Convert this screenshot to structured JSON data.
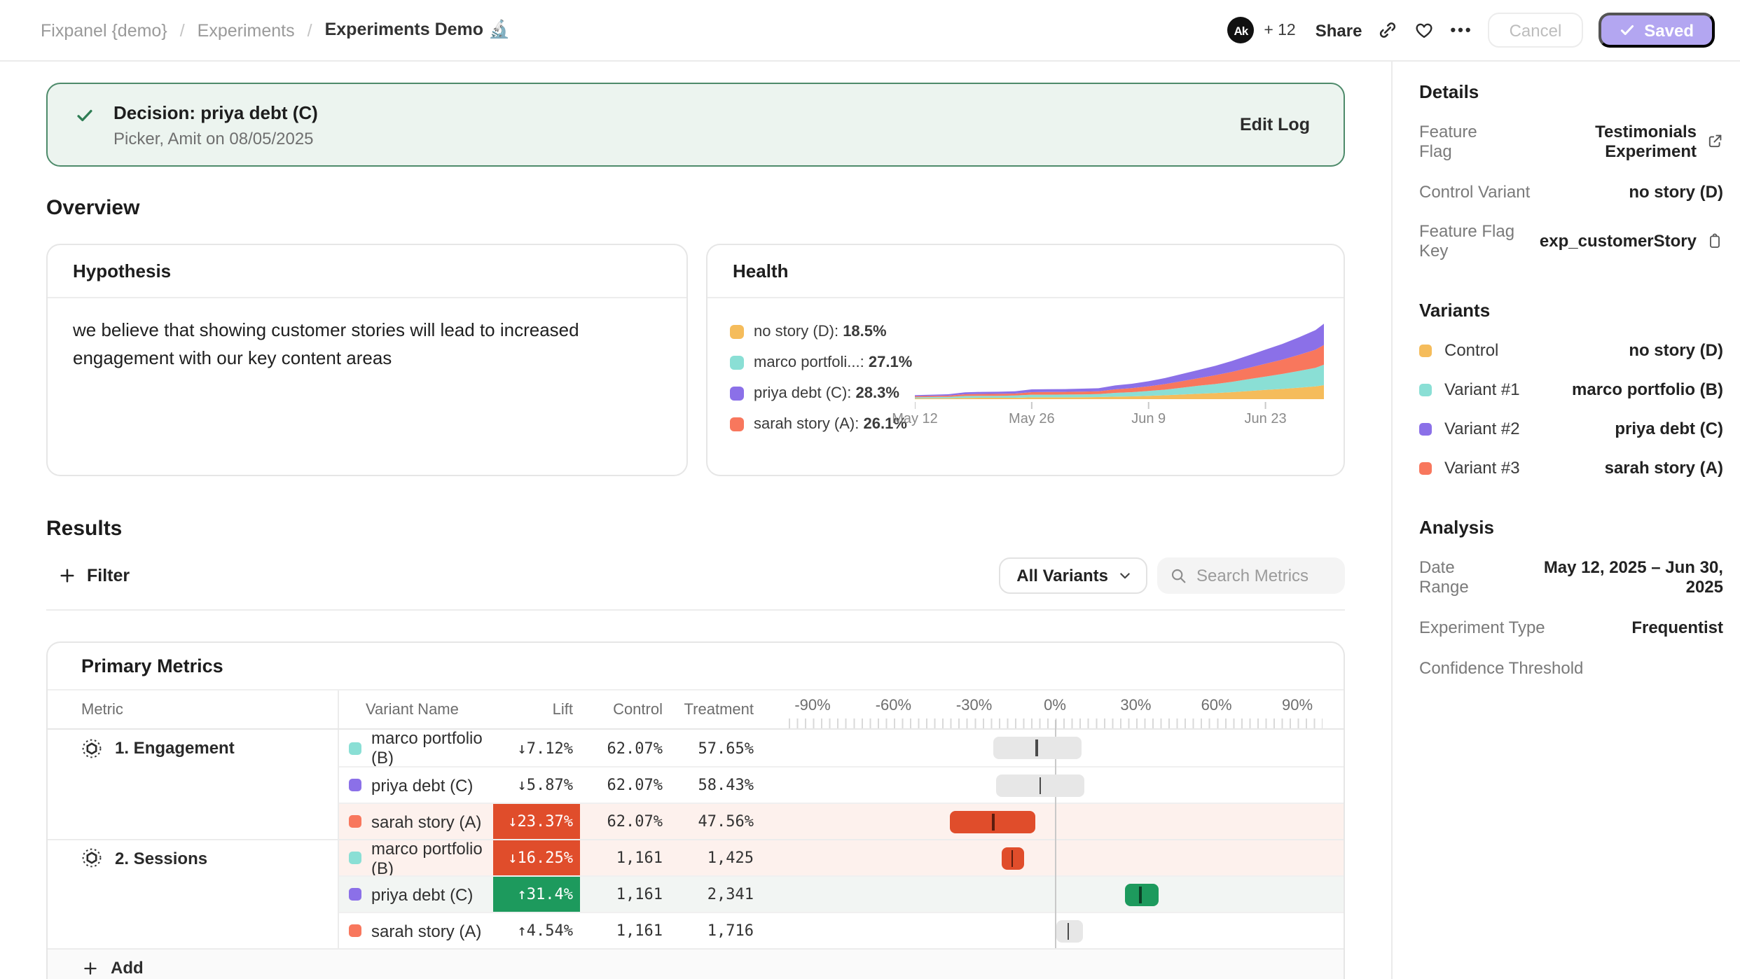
{
  "header": {
    "breadcrumb": [
      "Fixpanel {demo}",
      "Experiments",
      "Experiments Demo 🔬"
    ],
    "separator": "/",
    "avatar_label": "Ak",
    "collaborators": "+ 12",
    "share_label": "Share",
    "more_label": "•••",
    "cancel_label": "Cancel",
    "saved_label": "Saved",
    "saved_color": "#b3a6f1"
  },
  "decision": {
    "title": "Decision: priya debt (C)",
    "byline": "Picker, Amit on 08/05/2025",
    "edit_log_label": "Edit Log",
    "banner_bg": "#ecf4ef",
    "banner_border": "#4d8a6a"
  },
  "overview": {
    "title": "Overview",
    "hypothesis": {
      "title": "Hypothesis",
      "body": "we believe that showing customer stories will lead to increased engagement with our key content areas"
    },
    "health": {
      "title": "Health",
      "legend": [
        {
          "label": "no story (D)",
          "value": "18.5%",
          "color": "#f5bc5b"
        },
        {
          "label": "marco portfoli...",
          "value": "27.1%",
          "color": "#8adfd5"
        },
        {
          "label": "priya debt (C)",
          "value": "28.3%",
          "color": "#8b70e8"
        },
        {
          "label": "sarah story (A)",
          "value": "26.1%",
          "color": "#f8775d"
        }
      ]
    }
  },
  "results": {
    "title": "Results",
    "filter_label": "Filter",
    "variant_filter_label": "All Variants",
    "search_placeholder": "Search Metrics"
  },
  "primary_metrics": {
    "title": "Primary Metrics",
    "add_label": "Add",
    "columns": {
      "metric": "Metric",
      "variant": "Variant Name",
      "lift": "Lift",
      "control": "Control",
      "treatment": "Treatment"
    },
    "axis_labels": [
      "-90%",
      "-60%",
      "-30%",
      "0%",
      "30%",
      "60%",
      "90%"
    ],
    "rows": [
      {
        "group": "1. Engagement",
        "variant": "marco portfolio (B)",
        "color": "#8adfd5",
        "lift": "↓7.12%",
        "lift_type": "plain",
        "control": "62.07%",
        "treatment": "57.65%",
        "bg": "white",
        "ci": [
          -23,
          10
        ],
        "marker": -7.12
      },
      {
        "group": "",
        "variant": "priya debt (C)",
        "color": "#8b70e8",
        "lift": "↓5.87%",
        "lift_type": "plain",
        "control": "62.07%",
        "treatment": "58.43%",
        "bg": "white",
        "ci": [
          -22,
          11
        ],
        "marker": -5.87
      },
      {
        "group": "",
        "variant": "sarah story (A)",
        "color": "#f8775d",
        "lift": "↓23.37%",
        "lift_type": "negative",
        "control": "62.07%",
        "treatment": "47.56%",
        "bg": "pink",
        "ci": [
          -39,
          -7.5
        ],
        "marker": -23.37
      },
      {
        "group": "2. Sessions",
        "variant": "marco portfolio (B)",
        "color": "#8adfd5",
        "lift": "↓16.25%",
        "lift_type": "negative",
        "control": "1,161",
        "treatment": "1,425",
        "bg": "pink",
        "ci": [
          -20,
          -11.5
        ],
        "marker": -16.25
      },
      {
        "group": "",
        "variant": "priya debt (C)",
        "color": "#8b70e8",
        "lift": "↑31.4%",
        "lift_type": "positive",
        "control": "1,161",
        "treatment": "2,341",
        "bg": "mint",
        "ci": [
          26,
          38.5
        ],
        "marker": 31.4
      },
      {
        "group": "",
        "variant": "sarah story (A)",
        "color": "#f8775d",
        "lift": "↑4.54%",
        "lift_type": "plain",
        "control": "1,161",
        "treatment": "1,716",
        "bg": "white",
        "ci": [
          0.5,
          10.5
        ],
        "marker": 4.54
      }
    ]
  },
  "sidebar": {
    "details": {
      "title": "Details",
      "rows": [
        {
          "label": "Feature Flag",
          "value": "Testimonials Experiment",
          "icon": "external-link"
        },
        {
          "label": "Control Variant",
          "value": "no story (D)"
        },
        {
          "label": "Feature Flag Key",
          "value": "exp_customerStory",
          "icon": "copy"
        }
      ]
    },
    "variants": {
      "title": "Variants",
      "items": [
        {
          "label": "Control",
          "value": "no story (D)",
          "color": "#f5bc5b"
        },
        {
          "label": "Variant #1",
          "value": "marco portfolio (B)",
          "color": "#8adfd5"
        },
        {
          "label": "Variant #2",
          "value": "priya debt (C)",
          "color": "#8b70e8"
        },
        {
          "label": "Variant #3",
          "value": "sarah story (A)",
          "color": "#f8775d"
        }
      ]
    },
    "analysis": {
      "title": "Analysis",
      "rows": [
        {
          "label": "Date Range",
          "value": "May 12, 2025 – Jun 30, 2025"
        },
        {
          "label": "Experiment Type",
          "value": "Frequentist"
        },
        {
          "label": "Confidence Threshold",
          "value": ""
        }
      ]
    }
  },
  "chart_data": [
    {
      "type": "area",
      "stacked": true,
      "title": "Health — variant exposures over time",
      "legend_position": "left",
      "x_tick_labels": [
        "May 12",
        "May 26",
        "Jun 9",
        "Jun 23"
      ],
      "x_tick_days": [
        0,
        14,
        28,
        42
      ],
      "x_max_day": 49,
      "ylim": [
        0,
        100
      ],
      "days": [
        0,
        2,
        4,
        6,
        8,
        10,
        12,
        14,
        16,
        18,
        20,
        22,
        24,
        26,
        28,
        30,
        32,
        34,
        36,
        38,
        40,
        42,
        44,
        46,
        48,
        49
      ],
      "series": [
        {
          "name": "no story (D)",
          "color": "#f5bc5b",
          "share": "18.5%",
          "values": [
            0.9,
            1.0,
            1.1,
            1.6,
            1.7,
            1.7,
            1.8,
            2.2,
            2.3,
            2.3,
            2.4,
            2.5,
            3.1,
            3.5,
            4.1,
            4.8,
            5.7,
            6.7,
            7.6,
            8.7,
            10.0,
            11.3,
            12.6,
            14.1,
            15.7,
            17.2
          ]
        },
        {
          "name": "marco portfolio (B)",
          "color": "#8adfd5",
          "share": "27.1%",
          "values": [
            1.4,
            1.5,
            1.6,
            2.3,
            2.4,
            2.5,
            2.6,
            3.3,
            3.3,
            3.4,
            3.5,
            3.7,
            4.6,
            5.1,
            6.0,
            7.0,
            8.4,
            9.8,
            11.1,
            12.7,
            14.6,
            16.5,
            18.4,
            20.6,
            23.0,
            25.2
          ]
        },
        {
          "name": "sarah story (A)",
          "color": "#f8775d",
          "share": "26.1%",
          "values": [
            1.3,
            1.4,
            1.6,
            2.2,
            2.3,
            2.4,
            2.5,
            3.1,
            3.2,
            3.3,
            3.4,
            3.5,
            4.4,
            5.0,
            5.7,
            6.8,
            8.1,
            9.4,
            10.7,
            12.3,
            14.1,
            15.9,
            17.7,
            19.8,
            22.2,
            24.3
          ]
        },
        {
          "name": "priya debt (C)",
          "color": "#8b70e8",
          "share": "28.3%",
          "values": [
            1.4,
            1.6,
            1.7,
            2.4,
            2.5,
            2.6,
            2.7,
            3.4,
            3.5,
            3.5,
            3.7,
            3.8,
            4.8,
            5.4,
            6.2,
            7.4,
            8.8,
            10.2,
            11.6,
            13.3,
            15.3,
            17.3,
            19.2,
            21.5,
            24.1,
            26.3
          ]
        }
      ]
    },
    {
      "type": "bar",
      "subtype": "lift-confidence-intervals",
      "title": "Primary Metrics lift vs control",
      "xlim": [
        -90,
        90
      ],
      "x_ticks": [
        "-90%",
        "-60%",
        "-30%",
        "0%",
        "30%",
        "60%",
        "90%"
      ],
      "rows": [
        {
          "metric": "1. Engagement",
          "variant": "marco portfolio (B)",
          "lift_pct": -7.12,
          "ci": [
            -23,
            10
          ]
        },
        {
          "metric": "1. Engagement",
          "variant": "priya debt (C)",
          "lift_pct": -5.87,
          "ci": [
            -22,
            11
          ]
        },
        {
          "metric": "1. Engagement",
          "variant": "sarah story (A)",
          "lift_pct": -23.37,
          "ci": [
            -39,
            -7.5
          ]
        },
        {
          "metric": "2. Sessions",
          "variant": "marco portfolio (B)",
          "lift_pct": -16.25,
          "ci": [
            -20,
            -11.5
          ]
        },
        {
          "metric": "2. Sessions",
          "variant": "priya debt (C)",
          "lift_pct": 31.4,
          "ci": [
            26,
            38.5
          ]
        },
        {
          "metric": "2. Sessions",
          "variant": "sarah story (A)",
          "lift_pct": 4.54,
          "ci": [
            0.5,
            10.5
          ]
        }
      ]
    }
  ]
}
